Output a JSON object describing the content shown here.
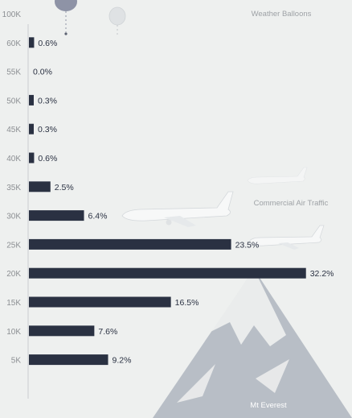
{
  "chart_data": {
    "type": "bar",
    "orientation": "horizontal",
    "categories": [
      "100K",
      "60K",
      "55K",
      "50K",
      "45K",
      "40K",
      "35K",
      "30K",
      "25K",
      "20K",
      "15K",
      "10K",
      "5K"
    ],
    "values": [
      null,
      0.6,
      0.0,
      0.3,
      0.3,
      0.6,
      2.5,
      6.4,
      23.5,
      32.2,
      16.5,
      7.6,
      9.2
    ],
    "value_labels": [
      "",
      "0.6%",
      "0.0%",
      "0.3%",
      "0.3%",
      "0.6%",
      "2.5%",
      "6.4%",
      "23.5%",
      "32.2%",
      "16.5%",
      "7.6%",
      "9.2%"
    ],
    "xlim": [
      0,
      34
    ],
    "grid": false,
    "annotations": [
      "Weather Balloons",
      "Commercial Air Traffic",
      "Mt Everest"
    ]
  },
  "colors": {
    "bar": "#2a3142",
    "background": "#eef0ef",
    "mountain": "#b8bec6",
    "snow": "#eef0ef",
    "plane": "#f7f8f8"
  },
  "icons": [
    "balloon-icon",
    "plane-icon",
    "mountain-illustration"
  ]
}
